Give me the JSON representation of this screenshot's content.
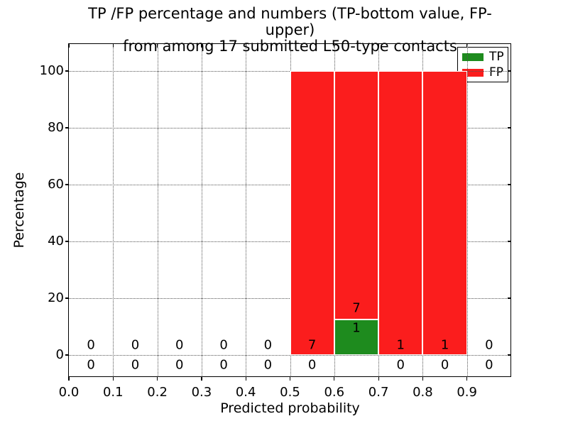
{
  "figure": {
    "title_line1": "TP /FP percentage and numbers (TP-bottom value, FP-upper)",
    "title_line2": "from among 17 submitted L50-type contacts"
  },
  "colors": {
    "tp": "#1e8b1e",
    "fp": "#fb1d1d",
    "bar_edge": "#ffffff",
    "grid": "#555555",
    "text": "#000000",
    "background": "#ffffff"
  },
  "legend": {
    "position": "upper-right",
    "items": [
      {
        "label": "TP",
        "color": "#1e8b1e"
      },
      {
        "label": "FP",
        "color": "#fb1d1d"
      }
    ]
  },
  "chart_data": {
    "type": "bar",
    "stacked": true,
    "title": "TP /FP percentage and numbers (TP-bottom value, FP-upper)\nfrom among 17 submitted L50-type contacts",
    "xlabel": "Predicted probability",
    "ylabel": "Percentage",
    "xlim": [
      0.0,
      1.0
    ],
    "ylim": [
      -7.75,
      109.5
    ],
    "xticks": [
      0.0,
      0.1,
      0.2,
      0.3,
      0.4,
      0.5,
      0.6,
      0.7,
      0.8,
      0.9
    ],
    "xtick_labels": [
      "0.0",
      "0.1",
      "0.2",
      "0.3",
      "0.4",
      "0.5",
      "0.6",
      "0.7",
      "0.8",
      "0.9"
    ],
    "yticks": [
      0,
      20,
      40,
      60,
      80,
      100
    ],
    "grid": "dotted",
    "legend_position": "upper-right",
    "total_contacts": 17,
    "bin_edges": [
      0.0,
      0.1,
      0.2,
      0.3,
      0.4,
      0.5,
      0.6,
      0.7,
      0.8,
      0.9,
      1.0
    ],
    "series": [
      {
        "name": "TP",
        "color": "#1e8b1e",
        "counts": [
          0,
          0,
          0,
          0,
          0,
          0,
          1,
          0,
          0,
          0
        ],
        "pct": [
          0,
          0,
          0,
          0,
          0,
          0,
          12.5,
          0,
          0,
          0
        ]
      },
      {
        "name": "FP",
        "color": "#fb1d1d",
        "counts": [
          0,
          0,
          0,
          0,
          0,
          7,
          7,
          1,
          1,
          0
        ],
        "pct": [
          0,
          0,
          0,
          0,
          0,
          100,
          87.5,
          100,
          100,
          0
        ]
      }
    ]
  }
}
